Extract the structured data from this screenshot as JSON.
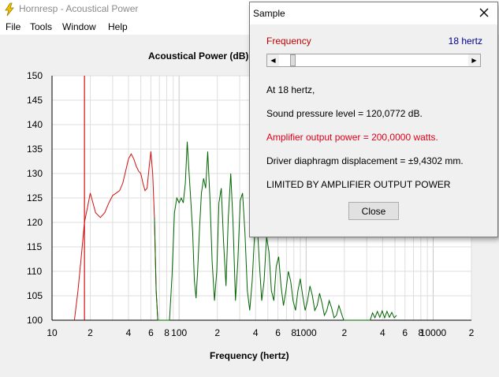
{
  "app": {
    "title": "Hornresp - Acoustical Power"
  },
  "menu": [
    {
      "label": "File"
    },
    {
      "label": "Tools"
    },
    {
      "label": "Window"
    },
    {
      "label": "Help"
    }
  ],
  "dialog": {
    "title": "Sample",
    "frequency_label": "Frequency",
    "frequency_value": "18 hertz",
    "slider_position_fraction": 0.04,
    "lines": [
      "At 18 hertz,",
      "Sound pressure level = 120,0772 dB.",
      "Amplifier output power = 200,0000 watts.",
      "Driver diaphragm displacement = ±9,4302 mm.",
      "LIMITED BY AMPLIFIER OUTPUT POWER"
    ],
    "close_label": "Close"
  },
  "chart_data": {
    "type": "line",
    "title": "Acoustical Power (dB)",
    "xlabel": "Frequency (hertz)",
    "ylabel": "",
    "xscale": "log",
    "xlim": [
      10,
      20000
    ],
    "ylim": [
      100,
      150
    ],
    "y_ticks": [
      150,
      145,
      140,
      135,
      130,
      125,
      120,
      115,
      110,
      105,
      100
    ],
    "x_tick_labels": [
      {
        "x": 10,
        "label": "10"
      },
      {
        "x": 20,
        "label": "2"
      },
      {
        "x": 40,
        "label": "4"
      },
      {
        "x": 60,
        "label": "6"
      },
      {
        "x": 80,
        "label": "8"
      },
      {
        "x": 100,
        "label": "100"
      },
      {
        "x": 200,
        "label": "2"
      },
      {
        "x": 400,
        "label": "4"
      },
      {
        "x": 600,
        "label": "6"
      },
      {
        "x": 800,
        "label": "8"
      },
      {
        "x": 1000,
        "label": "1000"
      },
      {
        "x": 2000,
        "label": "2"
      },
      {
        "x": 4000,
        "label": "4"
      },
      {
        "x": 6000,
        "label": "6"
      },
      {
        "x": 8000,
        "label": "8"
      },
      {
        "x": 10000,
        "label": "10000"
      },
      {
        "x": 20000,
        "label": "2"
      }
    ],
    "grid": true,
    "marker_frequency": 18,
    "colors": {
      "limited": "#d01010",
      "normal": "#006400",
      "marker": "#d01010"
    },
    "series": [
      {
        "x": [
          15,
          16,
          17,
          18,
          19,
          20,
          21,
          22,
          24,
          26,
          28,
          30,
          32,
          34,
          36,
          38,
          40,
          42,
          44,
          46,
          48,
          50,
          52,
          54,
          56,
          58,
          60,
          62,
          64,
          66,
          68,
          70,
          72,
          74,
          76,
          78,
          80,
          84,
          88,
          92,
          96,
          100,
          104,
          108,
          112,
          116,
          120,
          124,
          128,
          132,
          136,
          140,
          145,
          150,
          156,
          162,
          168,
          175,
          182,
          190,
          198,
          206,
          215,
          224,
          234,
          244,
          255,
          266,
          278,
          290,
          303,
          316,
          330,
          345,
          360,
          376,
          392,
          410,
          428,
          447,
          467,
          488,
          510,
          533,
          557,
          582,
          608,
          635,
          663,
          693,
          724,
          756,
          790,
          825,
          862,
          900,
          940,
          982,
          1026,
          1072,
          1120,
          1170,
          1222,
          1277,
          1334,
          1393,
          1455,
          1520,
          1588,
          1659,
          1733,
          1810,
          1891,
          1975,
          2063,
          2155,
          2251,
          2351,
          2456,
          2566,
          2680,
          2800,
          2925,
          3055,
          3191,
          3334,
          3482,
          3638,
          3800,
          3969,
          4146,
          4331,
          4524,
          4726,
          4937,
          5158
        ],
        "y": [
          100.0,
          106.0,
          113.0,
          120.0,
          123.0,
          126.0,
          124.0,
          122.0,
          121.0,
          122.0,
          124.0,
          125.5,
          126.0,
          126.5,
          128.0,
          130.5,
          133.0,
          134.0,
          133.0,
          131.5,
          130.5,
          130.0,
          128.0,
          126.5,
          127.0,
          131.0,
          134.5,
          130.0,
          121.0,
          106.0,
          100.0,
          100.0,
          100.0,
          100.0,
          100.0,
          100.0,
          100.0,
          100.0,
          109.0,
          122.0,
          125.0,
          124.0,
          125.0,
          124.0,
          128.0,
          136.5,
          130.0,
          124.0,
          118.0,
          108.0,
          104.5,
          110.0,
          119.0,
          126.0,
          129.0,
          127.0,
          134.5,
          125.0,
          112.0,
          104.0,
          110.0,
          124.0,
          127.0,
          116.0,
          107.0,
          121.0,
          130.0,
          120.0,
          104.0,
          112.0,
          124.5,
          126.0,
          118.0,
          106.0,
          102.0,
          108.0,
          117.0,
          121.0,
          112.0,
          104.0,
          108.0,
          117.0,
          114.0,
          106.0,
          104.0,
          111.0,
          113.0,
          107.0,
          103.0,
          106.0,
          110.0,
          108.0,
          104.0,
          102.0,
          106.0,
          108.5,
          105.0,
          102.0,
          104.0,
          107.0,
          105.0,
          102.0,
          103.0,
          105.5,
          103.5,
          101.0,
          102.0,
          104.0,
          102.5,
          100.5,
          101.0,
          103.0,
          101.5,
          100.0,
          100.0,
          100.0,
          100.0,
          100.0,
          100.0,
          100.0,
          100.0,
          100.0,
          100.0,
          100.0,
          100.0,
          101.5,
          100.5,
          101.8,
          100.6,
          101.9,
          100.5,
          101.8,
          100.6,
          101.6,
          100.5,
          101.0
        ]
      }
    ]
  }
}
